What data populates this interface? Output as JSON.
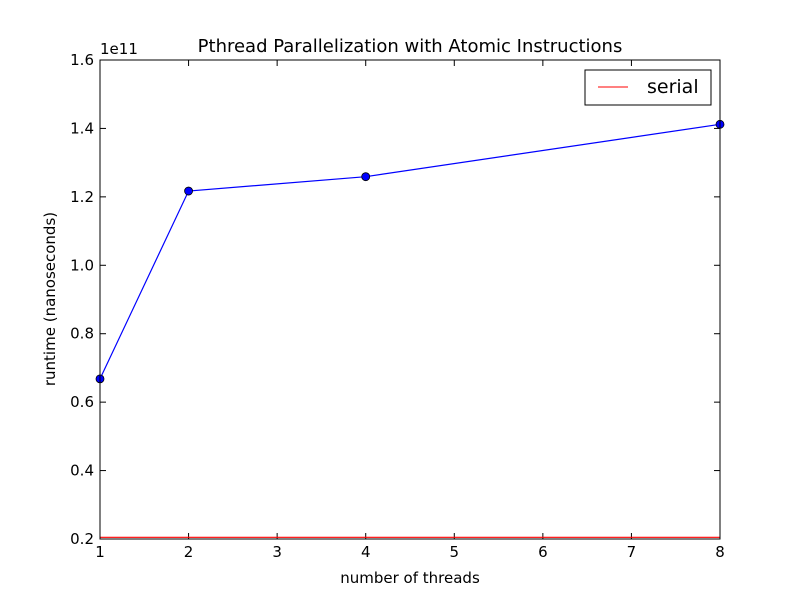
{
  "chart_data": {
    "type": "line",
    "title": "Pthread Parallelization with Atomic Instructions",
    "xlabel": "number of threads",
    "ylabel": "runtime (nanoseconds)",
    "y_offset_label": "1e11",
    "xlim": [
      1,
      8
    ],
    "ylim": [
      0.2,
      1.6
    ],
    "y_scale": 100000000000.0,
    "x_ticks": [
      1,
      2,
      3,
      4,
      5,
      6,
      7,
      8
    ],
    "x_tick_labels": [
      "1",
      "2",
      "3",
      "4",
      "5",
      "6",
      "7",
      "8"
    ],
    "y_ticks": [
      0.2,
      0.4,
      0.6,
      0.8,
      1.0,
      1.2,
      1.4,
      1.6
    ],
    "y_tick_labels": [
      "0.2",
      "0.4",
      "0.6",
      "0.8",
      "1.0",
      "1.2",
      "1.4",
      "1.6"
    ],
    "grid": false,
    "legend_position": "top-right",
    "series": [
      {
        "x": [
          1,
          2,
          4,
          8
        ],
        "y": [
          0.668,
          1.217,
          1.259,
          1.412
        ],
        "color": "#0000ff",
        "marker": "circle"
      },
      {
        "name": "serial",
        "x": [
          1,
          8
        ],
        "y": [
          0.205,
          0.205
        ],
        "color": "#ff0000",
        "marker": "none"
      }
    ]
  }
}
